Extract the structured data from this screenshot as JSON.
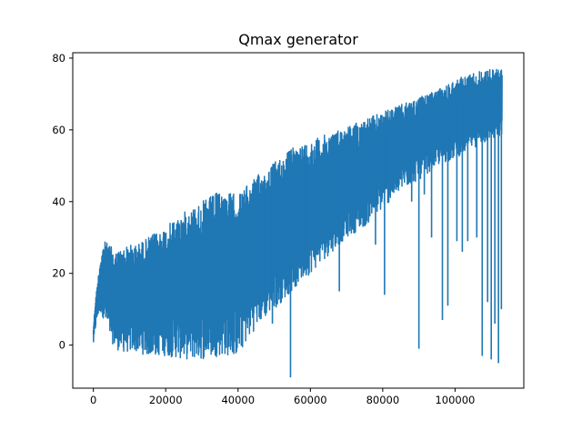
{
  "chart_data": {
    "type": "line",
    "title": "Qmax generator",
    "xlabel": "",
    "ylabel": "",
    "xlim": [
      -5700,
      119000
    ],
    "ylim": [
      -12,
      81.5
    ],
    "xticks": [
      0,
      20000,
      40000,
      60000,
      80000,
      100000
    ],
    "xtick_labels": [
      "0",
      "20000",
      "40000",
      "60000",
      "80000",
      "100000"
    ],
    "yticks": [
      0,
      20,
      40,
      60,
      80
    ],
    "ytick_labels": [
      "0",
      "20",
      "40",
      "60",
      "80"
    ],
    "grid": false,
    "legend": "none",
    "color": "#1f77b4",
    "series": [
      {
        "envelope_x": [
          0,
          500,
          1200,
          2000,
          3000,
          4500,
          6000,
          8000,
          10000,
          12000,
          15000,
          20000,
          25000,
          30000,
          35000,
          40000,
          45000,
          50000,
          55000,
          60000,
          65000,
          70000,
          75000,
          80000,
          85000,
          90000,
          95000,
          100000,
          105000,
          110000,
          113000
        ],
        "upper": [
          5,
          12,
          18,
          25,
          29,
          28,
          26,
          27,
          28,
          28,
          30,
          33,
          37,
          40,
          43,
          42,
          47,
          51,
          55,
          57,
          59,
          61,
          63,
          65,
          67,
          69,
          71,
          74,
          76,
          77,
          77
        ],
        "lower": [
          0,
          4,
          8,
          9,
          7,
          2,
          -1,
          -2,
          -2,
          -2,
          -3,
          -3,
          -4,
          -4,
          -3,
          -3,
          5,
          10,
          15,
          20,
          25,
          30,
          33,
          38,
          43,
          46,
          50,
          52,
          55,
          57,
          58
        ],
        "spikes": [
          {
            "x": 45800,
            "y": 13
          },
          {
            "x": 47000,
            "y": 12
          },
          {
            "x": 49500,
            "y": 6
          },
          {
            "x": 51000,
            "y": 18
          },
          {
            "x": 53000,
            "y": 27
          },
          {
            "x": 54500,
            "y": -9
          },
          {
            "x": 56000,
            "y": 22
          },
          {
            "x": 58500,
            "y": 27
          },
          {
            "x": 62000,
            "y": 30
          },
          {
            "x": 66000,
            "y": 30
          },
          {
            "x": 68000,
            "y": 15
          },
          {
            "x": 70000,
            "y": 38
          },
          {
            "x": 73000,
            "y": 35
          },
          {
            "x": 78000,
            "y": 28
          },
          {
            "x": 80500,
            "y": 14
          },
          {
            "x": 84000,
            "y": 44
          },
          {
            "x": 88000,
            "y": 40
          },
          {
            "x": 90000,
            "y": -1
          },
          {
            "x": 91500,
            "y": 42
          },
          {
            "x": 93500,
            "y": 30
          },
          {
            "x": 96500,
            "y": 7
          },
          {
            "x": 98000,
            "y": 11
          },
          {
            "x": 100500,
            "y": 29
          },
          {
            "x": 102000,
            "y": 26
          },
          {
            "x": 103500,
            "y": 29
          },
          {
            "x": 106000,
            "y": 30
          },
          {
            "x": 107500,
            "y": -3
          },
          {
            "x": 109000,
            "y": 12
          },
          {
            "x": 110000,
            "y": -4
          },
          {
            "x": 111000,
            "y": 6
          },
          {
            "x": 112000,
            "y": -5
          },
          {
            "x": 112800,
            "y": 10
          }
        ]
      }
    ]
  }
}
